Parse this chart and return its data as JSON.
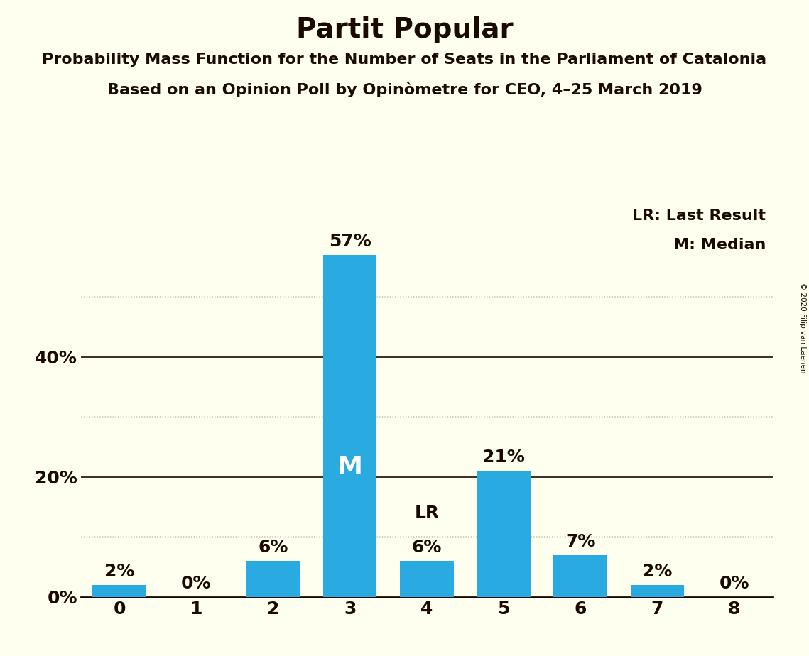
{
  "title": "Partit Popular",
  "subtitle1": "Probability Mass Function for the Number of Seats in the Parliament of Catalonia",
  "subtitle2": "Based on an Opinion Poll by Opinòmetre for CEO, 4–25 March 2019",
  "copyright": "© 2020 Filip van Laenen",
  "categories": [
    0,
    1,
    2,
    3,
    4,
    5,
    6,
    7,
    8
  ],
  "values": [
    2,
    0,
    6,
    57,
    6,
    21,
    7,
    2,
    0
  ],
  "bar_color": "#29ABE2",
  "background_color": "#FFFFF0",
  "text_color": "#1a0a00",
  "median": 3,
  "last_result": 4,
  "ylabel_ticks": [
    0,
    20,
    40
  ],
  "dotted_lines": [
    10,
    30,
    50
  ],
  "solid_lines": [
    20,
    40
  ],
  "legend_lr": "LR: Last Result",
  "legend_m": "M: Median",
  "title_fontsize": 28,
  "subtitle_fontsize": 16,
  "tick_fontsize": 18,
  "label_fontsize": 18,
  "legend_fontsize": 16,
  "ylim": [
    0,
    65
  ]
}
